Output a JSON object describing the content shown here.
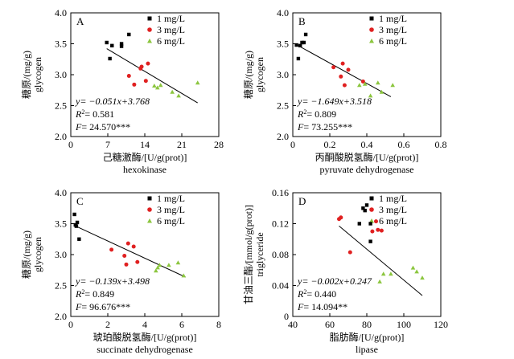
{
  "legend_labels": [
    "1 mg/L",
    "3 mg/L",
    "6 mg/L"
  ],
  "series_colors": {
    "1 mg/L": "#000000",
    "3 mg/L": "#e02020",
    "6 mg/L": "#8cc63f"
  },
  "chart_data": [
    {
      "type": "scatter",
      "panel": "A",
      "xlabel_cn": "己糖激酶/[U/g(prot)]",
      "xlabel_en": "hexokinase",
      "ylabel_cn": "糖原/(mg/g)",
      "ylabel_en": "glycogen",
      "xlim": [
        0,
        28
      ],
      "ylim": [
        2.0,
        4.0
      ],
      "xticks": [
        "0",
        "7",
        "14",
        "21",
        "28"
      ],
      "yticks": [
        "2.0",
        "2.5",
        "3.0",
        "3.5",
        "4.0"
      ],
      "series": [
        {
          "name": "1 mg/L",
          "points": [
            [
              6.8,
              3.52
            ],
            [
              7.4,
              3.26
            ],
            [
              7.8,
              3.47
            ],
            [
              9.6,
              3.5
            ],
            [
              9.6,
              3.46
            ],
            [
              11.0,
              3.65
            ]
          ]
        },
        {
          "name": "3 mg/L",
          "points": [
            [
              11.0,
              2.98
            ],
            [
              12.0,
              2.84
            ],
            [
              13.2,
              3.1
            ],
            [
              13.4,
              3.13
            ],
            [
              14.2,
              2.9
            ],
            [
              14.6,
              3.18
            ]
          ]
        },
        {
          "name": "6 mg/L",
          "points": [
            [
              15.8,
              2.82
            ],
            [
              16.4,
              2.79
            ],
            [
              17.0,
              2.83
            ],
            [
              19.2,
              2.72
            ],
            [
              20.4,
              2.66
            ],
            [
              24.0,
              2.87
            ]
          ]
        }
      ],
      "fit": {
        "slope": -0.051,
        "intercept": 3.768,
        "x_range": [
          6.8,
          24
        ]
      },
      "equation": "y= −0.051x+3.768",
      "r2_label": "R",
      "r2_value": "= 0.581",
      "f_label": "F",
      "f_value": "= 24.570***"
    },
    {
      "type": "scatter",
      "panel": "B",
      "xlabel_cn": "丙酮酸脱氢酶/[U/g(prot)]",
      "xlabel_en": "pyruvate dehydrogenase",
      "ylabel_cn": "糖原/(mg/g)",
      "ylabel_en": "glycogen",
      "xlim": [
        0,
        0.8
      ],
      "ylim": [
        2.0,
        4.0
      ],
      "xticks": [
        "0",
        "0.2",
        "0.4",
        "0.6",
        "0.8"
      ],
      "yticks": [
        "2.0",
        "2.5",
        "3.0",
        "3.5",
        "4.0"
      ],
      "series": [
        {
          "name": "1 mg/L",
          "points": [
            [
              0.02,
              3.48
            ],
            [
              0.03,
              3.26
            ],
            [
              0.04,
              3.47
            ],
            [
              0.05,
              3.52
            ],
            [
              0.06,
              3.52
            ],
            [
              0.07,
              3.65
            ]
          ]
        },
        {
          "name": "3 mg/L",
          "points": [
            [
              0.22,
              3.12
            ],
            [
              0.26,
              2.97
            ],
            [
              0.27,
              3.18
            ],
            [
              0.28,
              2.83
            ],
            [
              0.3,
              3.08
            ],
            [
              0.38,
              2.89
            ]
          ]
        },
        {
          "name": "6 mg/L",
          "points": [
            [
              0.36,
              2.83
            ],
            [
              0.39,
              2.85
            ],
            [
              0.42,
              2.66
            ],
            [
              0.46,
              2.87
            ],
            [
              0.48,
              2.72
            ],
            [
              0.54,
              2.83
            ]
          ]
        }
      ],
      "fit": {
        "slope": -1.649,
        "intercept": 3.518,
        "x_range": [
          0.02,
          0.53
        ]
      },
      "equation": "y= −1.649x+3.518",
      "r2_label": "R",
      "r2_value": "= 0.809",
      "f_label": "F",
      "f_value": "= 73.255***"
    },
    {
      "type": "scatter",
      "panel": "C",
      "xlabel_cn": "琥珀酸脱氢酶/[U/g(prot)]",
      "xlabel_en": "succinate dehydrogenase",
      "ylabel_cn": "糖原/(mg/g)",
      "ylabel_en": "glycogen",
      "xlim": [
        0,
        8
      ],
      "ylim": [
        2.0,
        4.0
      ],
      "xticks": [
        "0",
        "2",
        "4",
        "6",
        "8"
      ],
      "yticks": [
        "2.0",
        "2.5",
        "3.0",
        "3.5",
        "4.0"
      ],
      "series": [
        {
          "name": "1 mg/L",
          "points": [
            [
              0.2,
              3.65
            ],
            [
              0.25,
              3.48
            ],
            [
              0.3,
              3.46
            ],
            [
              0.35,
              3.52
            ],
            [
              0.45,
              3.25
            ]
          ]
        },
        {
          "name": "3 mg/L",
          "points": [
            [
              2.2,
              3.08
            ],
            [
              2.9,
              2.98
            ],
            [
              3.0,
              2.84
            ],
            [
              3.1,
              3.18
            ],
            [
              3.4,
              3.13
            ],
            [
              3.6,
              2.88
            ]
          ]
        },
        {
          "name": "6 mg/L",
          "points": [
            [
              4.6,
              2.74
            ],
            [
              4.7,
              2.79
            ],
            [
              4.8,
              2.83
            ],
            [
              5.3,
              2.83
            ],
            [
              5.8,
              2.87
            ],
            [
              6.1,
              2.66
            ]
          ]
        }
      ],
      "fit": {
        "slope": -0.139,
        "intercept": 3.498,
        "x_range": [
          0.2,
          6.2
        ]
      },
      "equation": "y= −0.139x+3.498",
      "r2_label": "R",
      "r2_value": "= 0.849",
      "f_label": "F",
      "f_value": "= 96.676***"
    },
    {
      "type": "scatter",
      "panel": "D",
      "xlabel_cn": "脂肪酶/[U/g(prot)]",
      "xlabel_en": "lipase",
      "ylabel_cn": "甘油三酯/[mmol/g(prot)]",
      "ylabel_en": "triglyceride",
      "xlim": [
        40,
        120
      ],
      "ylim": [
        0.0,
        0.16
      ],
      "xticks": [
        "40",
        "60",
        "80",
        "100",
        "120"
      ],
      "yticks": [
        "0",
        "0.04",
        "0.08",
        "0.12",
        "0.16"
      ],
      "series": [
        {
          "name": "1 mg/L",
          "points": [
            [
              76,
              0.12
            ],
            [
              78,
              0.14
            ],
            [
              79,
              0.137
            ],
            [
              80,
              0.144
            ],
            [
              82,
              0.12
            ],
            [
              82,
              0.097
            ]
          ]
        },
        {
          "name": "3 mg/L",
          "points": [
            [
              65,
              0.126
            ],
            [
              66,
              0.128
            ],
            [
              71,
              0.083
            ],
            [
              83,
              0.11
            ],
            [
              85,
              0.123
            ],
            [
              86,
              0.112
            ],
            [
              88,
              0.111
            ]
          ]
        },
        {
          "name": "6 mg/L",
          "points": [
            [
              87,
              0.045
            ],
            [
              89,
              0.055
            ],
            [
              93,
              0.055
            ],
            [
              105,
              0.063
            ],
            [
              107,
              0.058
            ],
            [
              110,
              0.05
            ]
          ]
        }
      ],
      "fit": {
        "slope": -0.002,
        "intercept": 0.247,
        "x_range": [
          65,
          110
        ]
      },
      "equation": "y= −0.002x+0.247",
      "r2_label": "R",
      "r2_value": "= 0.440",
      "f_label": "F",
      "f_value": "= 14.094**"
    }
  ]
}
